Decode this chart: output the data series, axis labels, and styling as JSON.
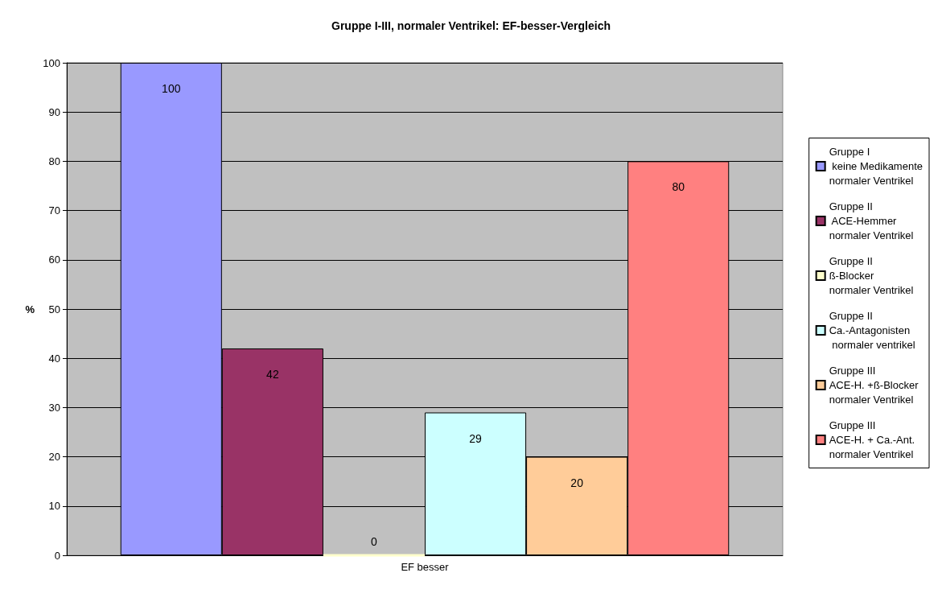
{
  "chart_data": {
    "type": "bar",
    "title": "Gruppe I-III, normaler Ventrikel: EF-besser-Vergleich",
    "ylabel": "%",
    "categories": [
      "EF besser"
    ],
    "series": [
      {
        "name": "Gruppe I\n keine Medikamente\nnormaler Ventrikel",
        "color": "#9999ff",
        "values": [
          100
        ]
      },
      {
        "name": "Gruppe II\n ACE-Hemmer\nnormaler Ventrikel",
        "color": "#993366",
        "values": [
          42
        ]
      },
      {
        "name": "Gruppe II\nß-Blocker\nnormaler Ventrikel",
        "color": "#ffffcc",
        "values": [
          0
        ]
      },
      {
        "name": "Gruppe II\nCa.-Antagonisten\n normaler ventrikel",
        "color": "#ccffff",
        "values": [
          29
        ]
      },
      {
        "name": "Gruppe III\nACE-H. +ß-Blocker\nnormaler Ventrikel",
        "color": "#ffcc99",
        "values": [
          20
        ]
      },
      {
        "name": "Gruppe III\nACE-H. + Ca.-Ant.\nnormaler Ventrikel",
        "color": "#ff8080",
        "values": [
          80
        ]
      }
    ],
    "ylim": [
      0,
      100
    ],
    "yticks": [
      0,
      10,
      20,
      30,
      40,
      50,
      60,
      70,
      80,
      90,
      100
    ],
    "grid": "y",
    "legend": "right",
    "data_labels": true
  }
}
